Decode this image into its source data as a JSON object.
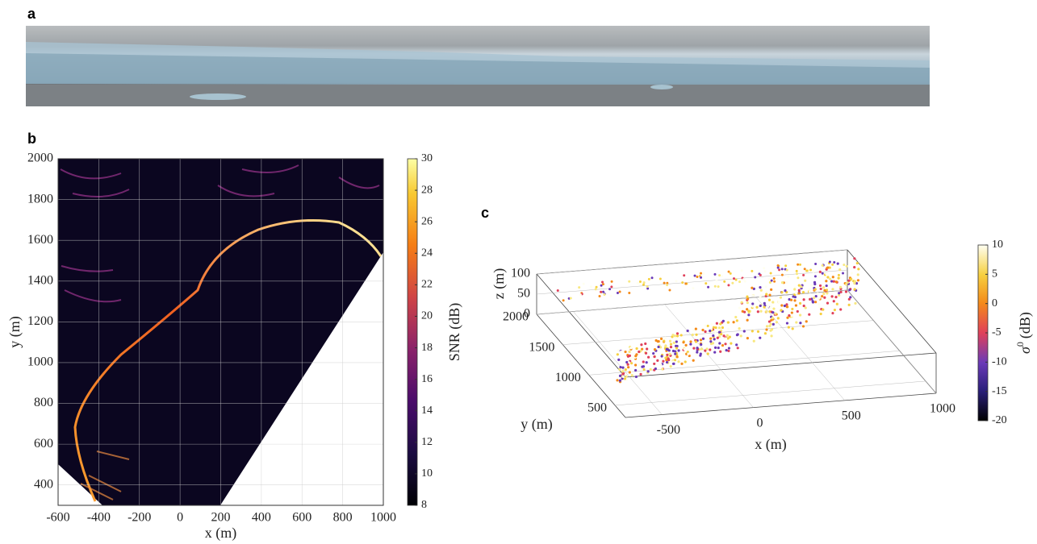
{
  "panel_labels": [
    "a",
    "b",
    "c"
  ],
  "chart_data": [
    {
      "type": "heatmap",
      "xlabel": "x (m)",
      "ylabel": "y (m)",
      "xlim": [
        -600,
        1000
      ],
      "ylim": [
        300,
        2000
      ],
      "xticks": [
        -600,
        -400,
        -200,
        0,
        200,
        400,
        600,
        800,
        1000
      ],
      "yticks": [
        400,
        600,
        800,
        1000,
        1200,
        1400,
        1600,
        1800,
        2000
      ],
      "grid": true,
      "colorbar": {
        "label": "SNR (dB)",
        "lim": [
          8,
          30
        ],
        "ticks": [
          8,
          10,
          12,
          14,
          16,
          18,
          20,
          22,
          24,
          26,
          28,
          30
        ]
      }
    },
    {
      "type": "scatter3d",
      "xlabel": "x (m)",
      "ylabel": "y (m)",
      "zlabel": "z (m)",
      "xlim": [
        -700,
        1000
      ],
      "ylim": [
        300,
        2000
      ],
      "zlim": [
        0,
        100
      ],
      "xticks": [
        -500,
        0,
        500,
        1000
      ],
      "yticks": [
        500,
        1000,
        1500,
        2000
      ],
      "zticks": [
        0,
        50,
        100
      ],
      "grid": true,
      "colorbar": {
        "symbol": "σ",
        "superscript": "0",
        "unit": "(dB)",
        "lim": [
          -20,
          10
        ],
        "ticks": [
          -20,
          -15,
          -10,
          -5,
          0,
          5,
          10
        ]
      }
    }
  ]
}
